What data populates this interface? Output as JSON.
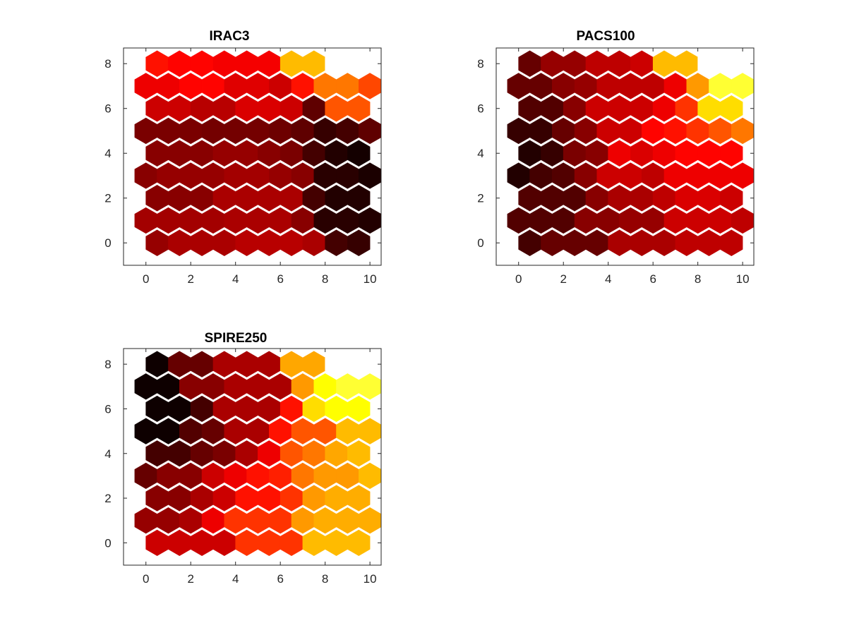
{
  "chart_data": [
    {
      "type": "heatmap",
      "subtype": "hexagonal-grid",
      "title": "IRAC3",
      "xlabel": "",
      "ylabel": "",
      "xlim": [
        -1,
        10.5
      ],
      "ylim": [
        -1,
        8.7
      ],
      "xticks": [
        0,
        2,
        4,
        6,
        8,
        10
      ],
      "yticks": [
        0,
        2,
        4,
        6,
        8
      ],
      "grid": false,
      "colormap": "hot",
      "rows": [
        [
          0.22,
          0.25,
          0.25,
          0.25,
          0.27,
          0.27,
          0.27,
          0.25,
          0.1,
          0.08
        ],
        [
          0.24,
          0.24,
          0.24,
          0.24,
          0.25,
          0.25,
          0.25,
          0.2,
          0.06,
          0.06,
          0.05
        ],
        [
          0.2,
          0.2,
          0.2,
          0.25,
          0.25,
          0.25,
          0.25,
          0.1,
          0.05,
          0.05
        ],
        [
          0.2,
          0.22,
          0.22,
          0.22,
          0.24,
          0.24,
          0.22,
          0.2,
          0.06,
          0.06,
          0.04
        ],
        [
          0.2,
          0.2,
          0.2,
          0.22,
          0.22,
          0.2,
          0.18,
          0.1,
          0.05,
          0.03
        ],
        [
          0.18,
          0.18,
          0.18,
          0.17,
          0.17,
          0.17,
          0.16,
          0.14,
          0.08,
          0.1,
          0.14
        ],
        [
          0.3,
          0.3,
          0.27,
          0.27,
          0.32,
          0.32,
          0.3,
          0.14,
          0.5,
          0.5
        ],
        [
          0.35,
          0.35,
          0.38,
          0.38,
          0.33,
          0.33,
          0.3,
          0.4,
          0.55,
          0.55,
          0.48
        ],
        [
          0.4,
          0.38,
          0.38,
          0.36,
          0.36,
          0.36,
          0.65,
          0.65,
          1.0,
          1.0
        ]
      ]
    },
    {
      "type": "heatmap",
      "subtype": "hexagonal-grid",
      "title": "PACS100",
      "xlabel": "",
      "ylabel": "",
      "xlim": [
        -1,
        10.5
      ],
      "ylim": [
        -1,
        8.7
      ],
      "xticks": [
        0,
        2,
        4,
        6,
        8,
        10
      ],
      "yticks": [
        0,
        2,
        4,
        6,
        8
      ],
      "grid": false,
      "colormap": "hot",
      "rows": [
        [
          0.1,
          0.15,
          0.15,
          0.15,
          0.25,
          0.25,
          0.25,
          0.28,
          0.28,
          0.28
        ],
        [
          0.12,
          0.12,
          0.12,
          0.2,
          0.2,
          0.22,
          0.22,
          0.3,
          0.3,
          0.3,
          0.28
        ],
        [
          0.12,
          0.12,
          0.12,
          0.2,
          0.25,
          0.25,
          0.28,
          0.32,
          0.32,
          0.3
        ],
        [
          0.05,
          0.1,
          0.12,
          0.2,
          0.3,
          0.3,
          0.28,
          0.35,
          0.35,
          0.35,
          0.35
        ],
        [
          0.05,
          0.08,
          0.18,
          0.2,
          0.35,
          0.32,
          0.35,
          0.38,
          0.38,
          0.38
        ],
        [
          0.08,
          0.08,
          0.15,
          0.2,
          0.3,
          0.3,
          0.38,
          0.4,
          0.45,
          0.5,
          0.55
        ],
        [
          0.12,
          0.12,
          0.2,
          0.3,
          0.3,
          0.3,
          0.35,
          0.45,
          0.7,
          0.7
        ],
        [
          0.15,
          0.15,
          0.2,
          0.22,
          0.28,
          0.28,
          0.28,
          0.35,
          0.6,
          0.8,
          0.8
        ],
        [
          0.15,
          0.22,
          0.22,
          0.28,
          0.28,
          0.3,
          0.65,
          0.65,
          1.0,
          1.0
        ]
      ]
    },
    {
      "type": "heatmap",
      "subtype": "hexagonal-grid",
      "title": "SPIRE250",
      "xlabel": "",
      "ylabel": "",
      "xlim": [
        -1,
        10.5
      ],
      "ylim": [
        -1,
        8.7
      ],
      "xticks": [
        0,
        2,
        4,
        6,
        8,
        10
      ],
      "yticks": [
        0,
        2,
        4,
        6,
        8
      ],
      "grid": false,
      "colormap": "hot",
      "rows": [
        [
          0.3,
          0.3,
          0.3,
          0.3,
          0.45,
          0.45,
          0.45,
          0.65,
          0.65,
          0.65
        ],
        [
          0.22,
          0.22,
          0.25,
          0.35,
          0.45,
          0.45,
          0.45,
          0.6,
          0.63,
          0.63,
          0.63
        ],
        [
          0.2,
          0.2,
          0.25,
          0.3,
          0.4,
          0.4,
          0.45,
          0.6,
          0.63,
          0.63
        ],
        [
          0.15,
          0.2,
          0.2,
          0.3,
          0.35,
          0.4,
          0.42,
          0.55,
          0.6,
          0.6,
          0.65
        ],
        [
          0.1,
          0.1,
          0.15,
          0.18,
          0.25,
          0.35,
          0.5,
          0.55,
          0.62,
          0.65
        ],
        [
          0.02,
          0.02,
          0.12,
          0.15,
          0.25,
          0.25,
          0.4,
          0.5,
          0.5,
          0.65,
          0.65
        ],
        [
          0.02,
          0.02,
          0.1,
          0.25,
          0.25,
          0.25,
          0.4,
          0.7,
          0.75,
          0.75
        ],
        [
          0.02,
          0.02,
          0.2,
          0.2,
          0.25,
          0.25,
          0.25,
          0.6,
          0.75,
          0.8,
          0.8
        ],
        [
          0.02,
          0.15,
          0.15,
          0.25,
          0.25,
          0.25,
          0.62,
          0.62,
          1.0,
          1.0
        ]
      ]
    }
  ]
}
